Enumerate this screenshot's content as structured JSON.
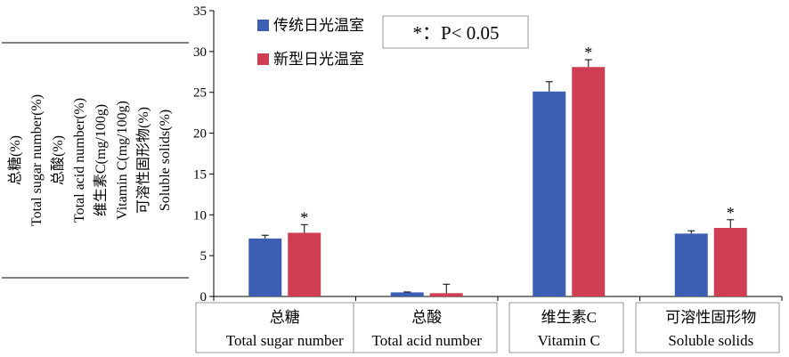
{
  "chart_data": {
    "type": "bar",
    "title": "",
    "ylabel_lines": [
      "总糖(%)",
      "Total sugar number(%)",
      "总酸(%)",
      "Total acid number(%)",
      "维生素C(mg/100g)",
      "Vitamin C(mg/100g)",
      "可溶性固形物(%)",
      "Soluble solids(%)"
    ],
    "categories": [
      {
        "zh": "总糖",
        "en": "Total sugar number"
      },
      {
        "zh": "总酸",
        "en": "Total acid number"
      },
      {
        "zh": "维生素C",
        "en": "Vitamin C"
      },
      {
        "zh": "可溶性固形物",
        "en": "Soluble solids"
      }
    ],
    "series": [
      {
        "name": "传统日光温室",
        "color": "#3c5fb4",
        "values": [
          7.1,
          0.5,
          25.1,
          7.7
        ],
        "errors": [
          0.4,
          0.05,
          1.2,
          0.35
        ],
        "significant": [
          false,
          false,
          false,
          false
        ]
      },
      {
        "name": "新型日光温室",
        "color": "#cf3e52",
        "values": [
          7.8,
          0.4,
          28.1,
          8.4
        ],
        "errors": [
          1.0,
          1.1,
          0.9,
          1.0
        ],
        "significant": [
          true,
          false,
          true,
          true
        ]
      }
    ],
    "ylim": [
      0,
      35
    ],
    "yticks": [
      0,
      5,
      10,
      15,
      20,
      25,
      30,
      35
    ],
    "significance_mark": "*",
    "annotation": "*：P< 0.05",
    "legend_position": "top-left",
    "grid": false
  }
}
